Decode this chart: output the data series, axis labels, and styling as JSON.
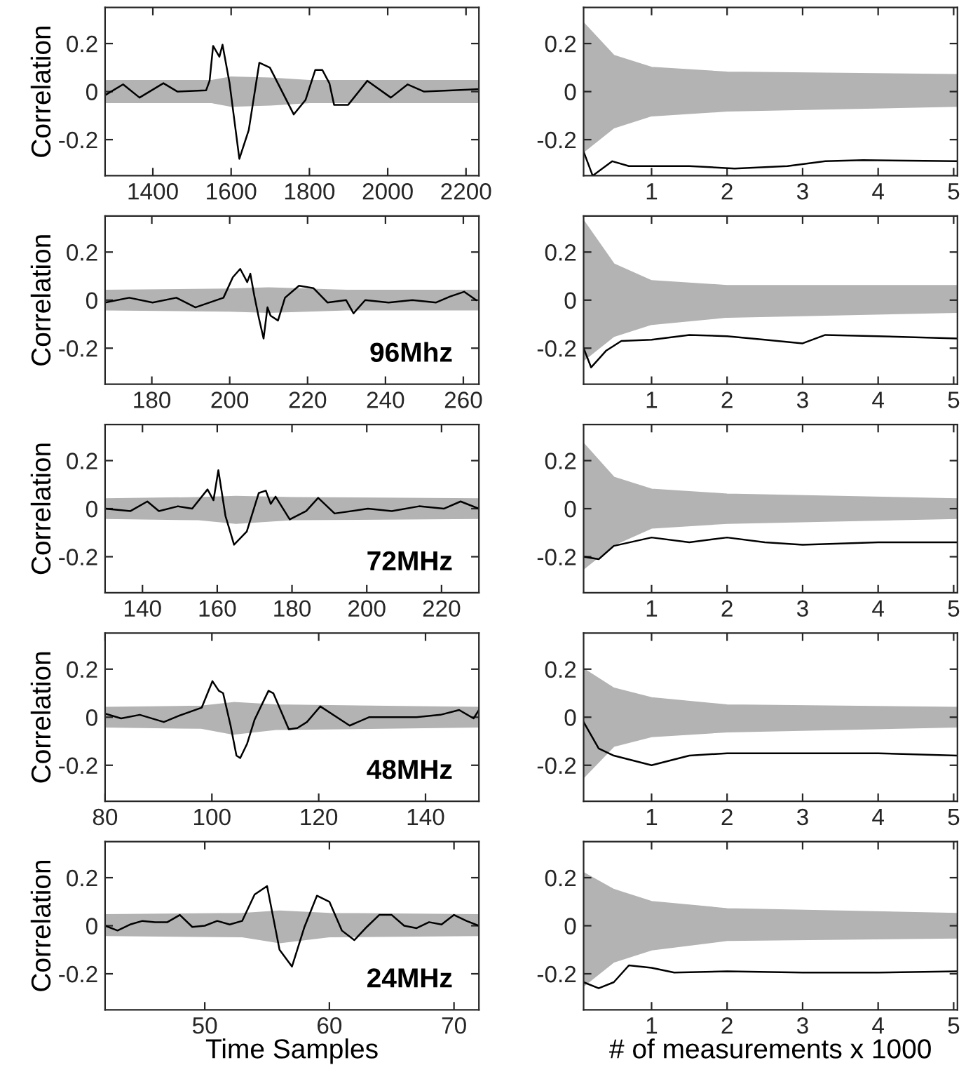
{
  "chart_data": [
    {
      "type": "line",
      "ylabel": "Correlation",
      "xlim": [
        1278,
        2233
      ],
      "xticks": [
        1400,
        1600,
        1800,
        2000,
        2200
      ],
      "ylim": [
        -0.35,
        0.35
      ],
      "yticks": [
        -0.2,
        0,
        0.2
      ],
      "grid": false,
      "legend": false,
      "series": [
        {
          "color": "#b3b3b3",
          "x": [
            1278,
            1550,
            1600,
            1700,
            1800,
            2233
          ],
          "values": [
            null,
            null,
            null,
            null,
            null,
            null
          ],
          "lower": [
            -0.045,
            -0.045,
            -0.06,
            -0.055,
            -0.045,
            -0.045
          ],
          "upper": [
            0.045,
            0.045,
            0.06,
            0.055,
            0.045,
            0.045
          ]
        },
        {
          "color": "#000000",
          "x": [
            1278,
            1324,
            1366,
            1427,
            1463,
            1536,
            1545,
            1554,
            1570,
            1578,
            1596,
            1621,
            1645,
            1672,
            1699,
            1760,
            1790,
            1815,
            1833,
            1851,
            1863,
            1899,
            1948,
            2008,
            2051,
            2093,
            2166,
            2233
          ],
          "values": [
            -0.015,
            0.03,
            -0.025,
            0.035,
            0,
            0.005,
            0.045,
            0.19,
            0.145,
            0.195,
            0.035,
            -0.28,
            -0.16,
            0.12,
            0.1,
            -0.095,
            -0.035,
            0.09,
            0.09,
            0.035,
            -0.055,
            -0.055,
            0.045,
            -0.025,
            0.03,
            0,
            0.005,
            0.01
          ]
        }
      ]
    },
    {
      "type": "line",
      "xlim": [
        0.1,
        5.05
      ],
      "xticks": [
        1,
        2,
        3,
        4,
        5
      ],
      "ylim": [
        -0.35,
        0.35
      ],
      "yticks": [
        -0.2,
        0,
        0.2
      ],
      "grid": false,
      "legend": false,
      "series": [
        {
          "color": "#b3b3b3",
          "x": [
            0.1,
            0.5,
            1,
            2,
            5.05
          ],
          "values": [
            null,
            null,
            null,
            null,
            null
          ],
          "lower": [
            -0.25,
            -0.15,
            -0.1,
            -0.08,
            -0.06
          ],
          "upper": [
            0.285,
            0.15,
            0.1,
            0.08,
            0.07
          ]
        },
        {
          "color": "#000000",
          "x": [
            0.1,
            0.22,
            0.48,
            0.7,
            1.5,
            2.1,
            2.8,
            3.3,
            3.8,
            5.05
          ],
          "values": [
            -0.25,
            -0.35,
            -0.29,
            -0.31,
            -0.31,
            -0.32,
            -0.31,
            -0.29,
            -0.285,
            -0.29
          ]
        }
      ]
    },
    {
      "type": "line",
      "ylabel": "Correlation",
      "annotations": [
        "96Mhz"
      ],
      "xlim": [
        168,
        264
      ],
      "xticks": [
        180,
        200,
        220,
        240,
        260
      ],
      "ylim": [
        -0.35,
        0.35
      ],
      "yticks": [
        -0.2,
        0,
        0.2
      ],
      "grid": false,
      "legend": false,
      "series": [
        {
          "color": "#b3b3b3",
          "x": [
            168,
            200,
            210,
            230,
            264
          ],
          "values": [
            null,
            null,
            null,
            null,
            null
          ],
          "lower": [
            -0.04,
            -0.045,
            -0.05,
            -0.04,
            -0.04
          ],
          "upper": [
            0.04,
            0.045,
            0.05,
            0.04,
            0.04
          ]
        },
        {
          "color": "#000000",
          "x": [
            168,
            174.2,
            180.2,
            186.3,
            191.2,
            198.4,
            200.8,
            202.7,
            204.5,
            205.3,
            206.3,
            207.5,
            208.7,
            209.7,
            210.5,
            212.4,
            214.2,
            217.8,
            221.5,
            225.1,
            229.9,
            231.8,
            234.8,
            240.8,
            246.9,
            253,
            256.6,
            260.2,
            263.3
          ],
          "values": [
            -0.01,
            0.01,
            -0.01,
            0.01,
            -0.03,
            0.01,
            0.095,
            0.13,
            0.075,
            0.11,
            0.02,
            -0.075,
            -0.16,
            -0.03,
            -0.065,
            -0.085,
            0.01,
            0.06,
            0.05,
            -0.01,
            0,
            -0.055,
            0,
            -0.01,
            0,
            -0.01,
            0.015,
            0.035,
            0
          ]
        }
      ]
    },
    {
      "type": "line",
      "xlim": [
        0.1,
        5.05
      ],
      "xticks": [
        1,
        2,
        3,
        4,
        5
      ],
      "ylim": [
        -0.35,
        0.35
      ],
      "yticks": [
        -0.2,
        0,
        0.2
      ],
      "grid": false,
      "legend": false,
      "series": [
        {
          "color": "#b3b3b3",
          "x": [
            0.1,
            0.5,
            1,
            2,
            5.05
          ],
          "values": [
            null,
            null,
            null,
            null,
            null
          ],
          "lower": [
            -0.25,
            -0.15,
            -0.1,
            -0.07,
            -0.05
          ],
          "upper": [
            0.33,
            0.15,
            0.08,
            0.06,
            0.06
          ]
        },
        {
          "color": "#000000",
          "x": [
            0.1,
            0.2,
            0.4,
            0.6,
            1.0,
            1.5,
            2.0,
            2.5,
            3.0,
            3.3,
            4.0,
            5.05
          ],
          "values": [
            -0.2,
            -0.28,
            -0.21,
            -0.17,
            -0.165,
            -0.145,
            -0.15,
            -0.165,
            -0.18,
            -0.145,
            -0.15,
            -0.16
          ]
        }
      ]
    },
    {
      "type": "line",
      "ylabel": "Correlation",
      "annotations": [
        "72MHz"
      ],
      "xlim": [
        130,
        230
      ],
      "xticks": [
        140,
        160,
        180,
        200,
        220
      ],
      "ylim": [
        -0.35,
        0.35
      ],
      "yticks": [
        -0.2,
        0,
        0.2
      ],
      "grid": false,
      "legend": false,
      "series": [
        {
          "color": "#b3b3b3",
          "x": [
            130,
            155,
            165,
            180,
            230
          ],
          "values": [
            null,
            null,
            null,
            null,
            null
          ],
          "lower": [
            -0.04,
            -0.045,
            -0.06,
            -0.045,
            -0.04
          ],
          "upper": [
            0.04,
            0.045,
            0.05,
            0.045,
            0.04
          ]
        },
        {
          "color": "#000000",
          "x": [
            130.1,
            136.8,
            141.3,
            144.4,
            149.5,
            153.3,
            157.4,
            159,
            160.3,
            162.2,
            164.5,
            167.9,
            171.1,
            173,
            174.3,
            175.6,
            179.4,
            183.8,
            187,
            191.4,
            200.3,
            206.7,
            214,
            220.6,
            225.1,
            230
          ],
          "values": [
            0,
            -0.01,
            0.03,
            -0.01,
            0.01,
            0,
            0.08,
            0.035,
            0.16,
            -0.03,
            -0.15,
            -0.095,
            0.065,
            0.075,
            0.02,
            0.05,
            -0.045,
            -0.01,
            0.045,
            -0.02,
            0,
            -0.01,
            0.01,
            0,
            0.03,
            0
          ]
        }
      ]
    },
    {
      "type": "line",
      "xlim": [
        0.1,
        5.05
      ],
      "xticks": [
        1,
        2,
        3,
        4,
        5
      ],
      "ylim": [
        -0.35,
        0.35
      ],
      "yticks": [
        -0.2,
        0,
        0.2
      ],
      "grid": false,
      "legend": false,
      "series": [
        {
          "color": "#b3b3b3",
          "x": [
            0.1,
            0.5,
            1,
            2,
            5.05
          ],
          "values": [
            null,
            null,
            null,
            null,
            null
          ],
          "lower": [
            -0.25,
            -0.15,
            -0.08,
            -0.06,
            -0.04
          ],
          "upper": [
            0.27,
            0.13,
            0.08,
            0.06,
            0.04
          ]
        },
        {
          "color": "#000000",
          "x": [
            0.1,
            0.3,
            0.5,
            1.0,
            1.5,
            2.0,
            2.5,
            3.0,
            4.0,
            5.05
          ],
          "values": [
            -0.2,
            -0.21,
            -0.155,
            -0.12,
            -0.14,
            -0.12,
            -0.14,
            -0.15,
            -0.14,
            -0.14
          ]
        }
      ]
    },
    {
      "type": "line",
      "ylabel": "Correlation",
      "annotations": [
        "48MHz"
      ],
      "xlim": [
        80,
        150
      ],
      "xticks": [
        80,
        100,
        120,
        140
      ],
      "ylim": [
        -0.35,
        0.35
      ],
      "yticks": [
        -0.2,
        0,
        0.2
      ],
      "grid": false,
      "legend": false,
      "series": [
        {
          "color": "#b3b3b3",
          "x": [
            80,
            98,
            104,
            112,
            150
          ],
          "values": [
            null,
            null,
            null,
            null,
            null
          ],
          "lower": [
            -0.04,
            -0.045,
            -0.07,
            -0.05,
            -0.04
          ],
          "upper": [
            0.04,
            0.045,
            0.06,
            0.05,
            0.04
          ]
        },
        {
          "color": "#000000",
          "x": [
            80,
            83,
            86.5,
            91,
            93.7,
            98.1,
            100.1,
            101.3,
            102.1,
            103.5,
            104.6,
            105.3,
            106.6,
            108,
            110.6,
            111.5,
            114.4,
            116,
            117.8,
            120.3,
            125.8,
            129.4,
            133.8,
            138.3,
            142.8,
            146.3,
            149,
            150
          ],
          "values": [
            0.015,
            -0.005,
            0.01,
            -0.02,
            0.005,
            0.04,
            0.15,
            0.11,
            0.1,
            -0.035,
            -0.16,
            -0.17,
            -0.11,
            -0.01,
            0.11,
            0.1,
            -0.05,
            -0.045,
            -0.02,
            0.045,
            -0.035,
            0,
            0,
            0,
            0.01,
            0.03,
            -0.005,
            0.03
          ]
        }
      ]
    },
    {
      "type": "line",
      "xlim": [
        0.1,
        5.05
      ],
      "xticks": [
        1,
        2,
        3,
        4,
        5
      ],
      "ylim": [
        -0.35,
        0.35
      ],
      "yticks": [
        -0.2,
        0,
        0.2
      ],
      "grid": false,
      "legend": false,
      "series": [
        {
          "color": "#b3b3b3",
          "x": [
            0.1,
            0.5,
            1,
            2,
            5.05
          ],
          "values": [
            null,
            null,
            null,
            null,
            null
          ],
          "lower": [
            -0.25,
            -0.12,
            -0.08,
            -0.06,
            -0.04
          ],
          "upper": [
            0.2,
            0.12,
            0.08,
            0.05,
            0.04
          ]
        },
        {
          "color": "#000000",
          "x": [
            0.1,
            0.3,
            0.5,
            1.0,
            1.5,
            2,
            3,
            4,
            5.05
          ],
          "values": [
            -0.02,
            -0.13,
            -0.16,
            -0.2,
            -0.16,
            -0.15,
            -0.15,
            -0.15,
            -0.16
          ]
        }
      ]
    },
    {
      "type": "line",
      "ylabel": "Correlation",
      "xlabel": "Time Samples",
      "annotations": [
        "24MHz"
      ],
      "xlim": [
        42,
        72
      ],
      "xticks": [
        50,
        60,
        70
      ],
      "ylim": [
        -0.35,
        0.35
      ],
      "yticks": [
        -0.2,
        0,
        0.2
      ],
      "grid": false,
      "legend": false,
      "series": [
        {
          "color": "#b3b3b3",
          "x": [
            42,
            53,
            56,
            60,
            72
          ],
          "values": [
            null,
            null,
            null,
            null,
            null
          ],
          "lower": [
            -0.04,
            -0.045,
            -0.07,
            -0.045,
            -0.04
          ],
          "upper": [
            0.045,
            0.05,
            0.06,
            0.05,
            0.045
          ]
        },
        {
          "color": "#000000",
          "x": [
            42,
            43,
            44,
            45,
            46,
            47,
            48,
            49,
            50,
            51,
            52,
            53,
            54,
            55,
            56,
            57,
            58,
            59,
            60,
            61,
            62,
            63,
            64,
            65,
            66,
            67,
            68,
            69,
            70,
            71,
            72
          ],
          "values": [
            0,
            -0.02,
            0.005,
            0.02,
            0.015,
            0.015,
            0.045,
            -0.005,
            0,
            0.02,
            0.005,
            0.02,
            0.13,
            0.165,
            -0.1,
            -0.17,
            -0.005,
            0.125,
            0.1,
            -0.02,
            -0.06,
            -0.005,
            0.045,
            0.045,
            0,
            -0.01,
            0.015,
            0.005,
            0.045,
            0.02,
            0
          ]
        }
      ]
    },
    {
      "type": "line",
      "xlabel": "# of measurements x 1000",
      "xlim": [
        0.1,
        5.05
      ],
      "xticks": [
        1,
        2,
        3,
        4,
        5
      ],
      "ylim": [
        -0.35,
        0.35
      ],
      "yticks": [
        -0.2,
        0,
        0.2
      ],
      "grid": false,
      "legend": false,
      "series": [
        {
          "color": "#b3b3b3",
          "x": [
            0.1,
            0.5,
            1,
            2,
            5.05
          ],
          "values": [
            null,
            null,
            null,
            null,
            null
          ],
          "lower": [
            -0.25,
            -0.15,
            -0.1,
            -0.06,
            -0.05
          ],
          "upper": [
            0.22,
            0.15,
            0.1,
            0.07,
            0.05
          ]
        },
        {
          "color": "#000000",
          "x": [
            0.1,
            0.3,
            0.5,
            0.7,
            1,
            1.3,
            2,
            3,
            4,
            5.05
          ],
          "values": [
            -0.235,
            -0.26,
            -0.235,
            -0.165,
            -0.175,
            -0.195,
            -0.19,
            -0.195,
            -0.195,
            -0.19
          ]
        }
      ]
    }
  ]
}
